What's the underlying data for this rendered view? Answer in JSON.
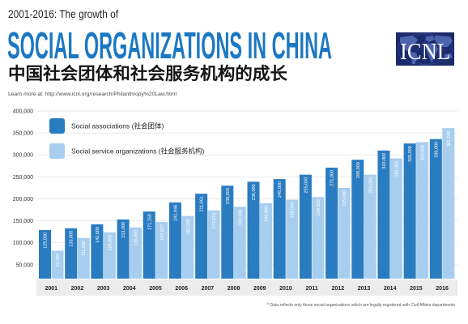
{
  "chart_data": {
    "type": "bar",
    "pretitle": "2001-2016: The growth of",
    "title": "SOCIAL ORGANIZATIONS IN CHINA",
    "title_zh": "中国社会团体和社会服务机构的成长",
    "source_note": "Learn more at: http://www.icnl.org/research/Philanthropy%20Law.html",
    "categories": [
      "2001",
      "2002",
      "2003",
      "2004",
      "2005",
      "2006",
      "2007",
      "2008",
      "2009",
      "2010",
      "2011",
      "2012",
      "2013",
      "2014",
      "2015",
      "2016"
    ],
    "series": [
      {
        "name": "Social associations (社会团体)",
        "color": "#2a7cc1",
        "values": [
          129000,
          133000,
          142000,
          153000,
          171150,
          191946,
          211661,
          230000,
          239000,
          245000,
          255000,
          271000,
          289000,
          310000,
          326000,
          336000
        ],
        "labels": [
          "129,000",
          "133,000",
          "142,000",
          "153,000",
          "171,150",
          "191,946",
          "211,661",
          "230,000",
          "239,000",
          "245,000",
          "255,000",
          "271,000",
          "289,000",
          "310,000",
          "326,000",
          "336,000"
        ]
      },
      {
        "name": "Social service organizations (社会服务机构)",
        "color": "#a8ceef",
        "values": [
          82000,
          111000,
          124000,
          135000,
          147637,
          161000,
          173915,
          182000,
          190000,
          198000,
          204000,
          225000,
          255000,
          292000,
          329000,
          361000
        ],
        "labels": [
          "82,000",
          "111,000",
          "124,000",
          "135,000",
          "147,637",
          "161,000",
          "173,915",
          "182,000",
          "190,000",
          "198,000",
          "204,000",
          "225,000",
          "255,000",
          "292,000",
          "329,000",
          "361,000"
        ]
      }
    ],
    "yticks": [
      "50,000",
      "100,000",
      "150,000",
      "200,000",
      "250,000",
      "300,000",
      "350,000",
      "400,000"
    ],
    "ylim": [
      0,
      400000
    ],
    "grid": true,
    "legend": "top-left",
    "footnote": "* Data reflects only those social organizations which are legally registered with Civil Affairs departments"
  },
  "colors": {
    "title": "#1c78c2"
  },
  "logo": {
    "text": "ICNL",
    "icon": "world-map-icon",
    "background": "#1b2a6b"
  }
}
